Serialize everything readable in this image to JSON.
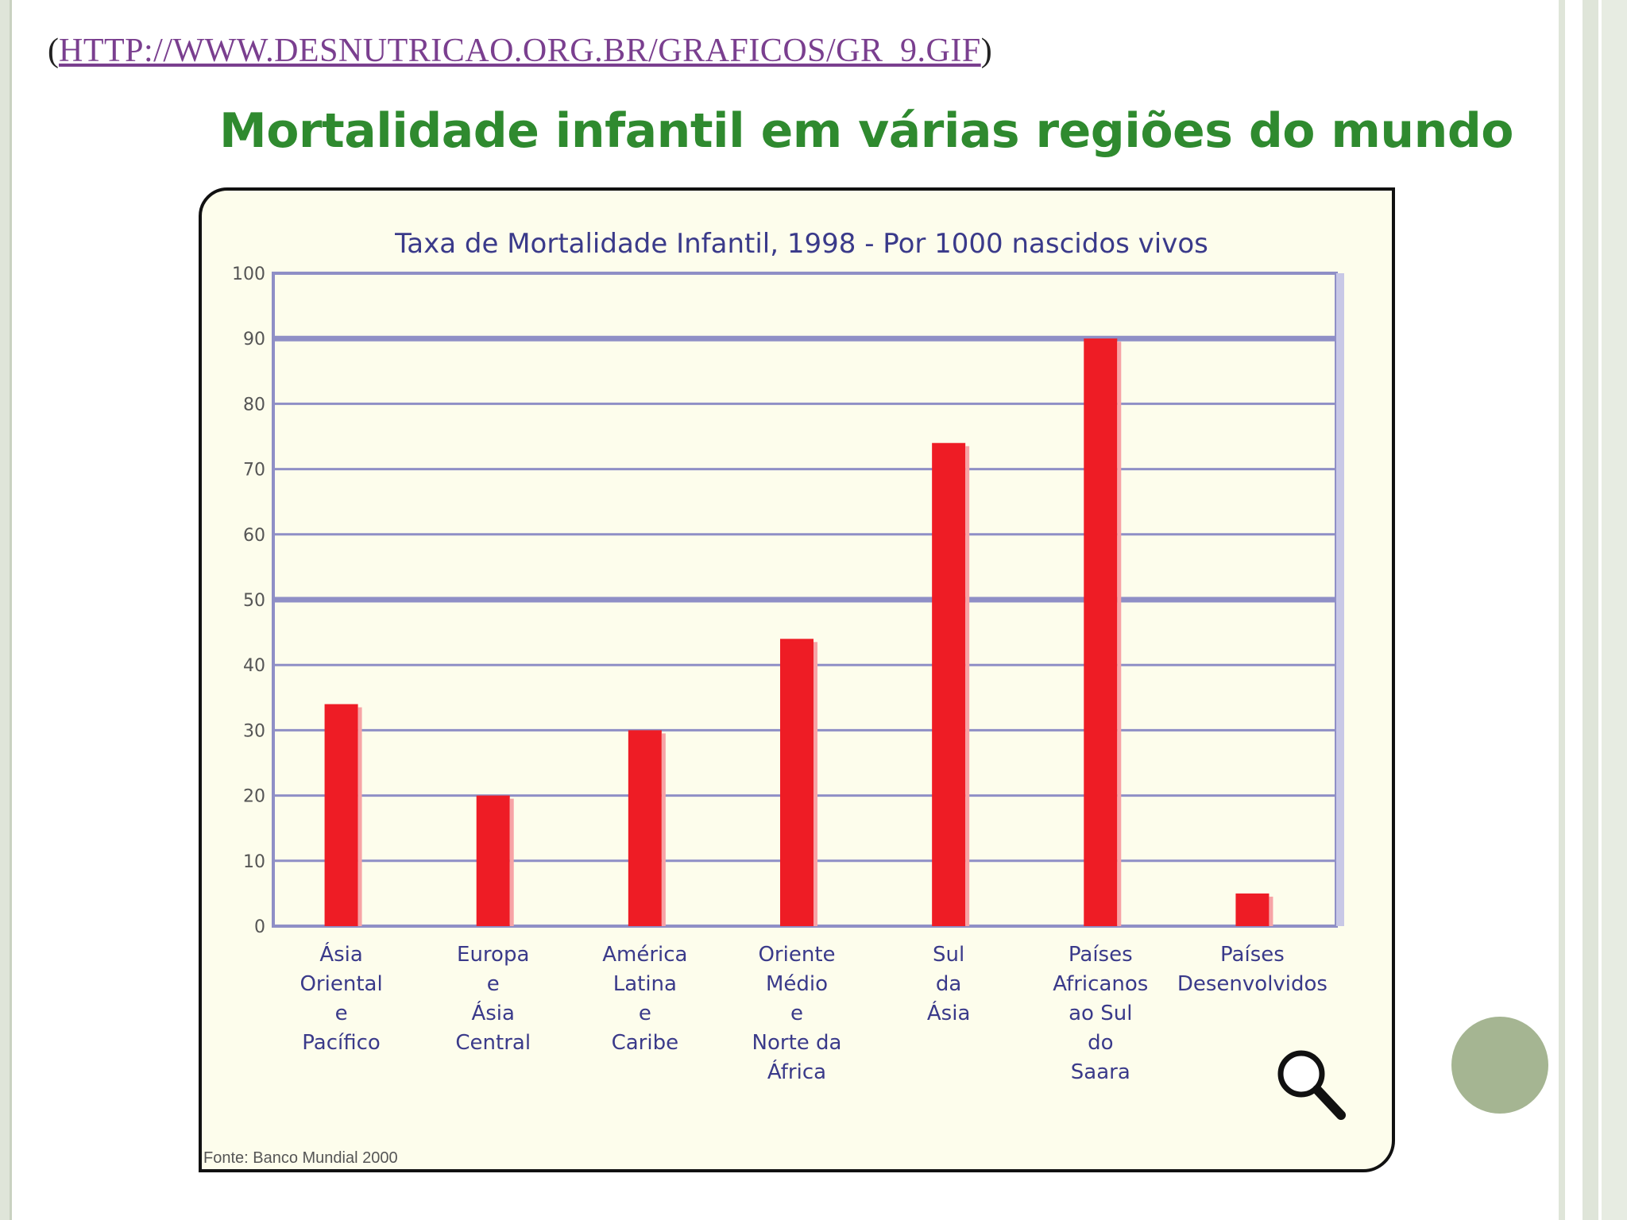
{
  "source_link": {
    "open_paren": "(",
    "url_text": "HTTP://WWW.DESNUTRICAO.ORG.BR/GRAFICOS/GR_9.GIF",
    "close_paren": ")"
  },
  "heading": "Mortalidade infantil em várias regiões do mundo",
  "footnote": "Fonte: Banco Mundial 2000",
  "icons": {
    "zoom": "magnifier-icon"
  },
  "colors": {
    "bar": "#ee1c25",
    "grid": "#8f8fc6",
    "heading": "#2f8a2f",
    "panel": "#fdfdec"
  },
  "chart_data": {
    "type": "bar",
    "title": "Taxa de Mortalidade Infantil, 1998  -  Por 1000 nascidos vivos",
    "categories": [
      [
        "Ásia",
        "Oriental",
        "e",
        "Pacífico"
      ],
      [
        "Europa",
        "e",
        "Ásia",
        "Central"
      ],
      [
        "América",
        "Latina",
        "e",
        "Caribe"
      ],
      [
        "Oriente",
        "Médio",
        "e",
        "Norte da",
        "África"
      ],
      [
        "Sul",
        "da",
        "Ásia"
      ],
      [
        "Países",
        "Africanos",
        "ao Sul",
        "do",
        "Saara"
      ],
      [
        "Países",
        "Desenvolvidos"
      ]
    ],
    "values": [
      34,
      20,
      30,
      44,
      74,
      90,
      5
    ],
    "ylim": [
      0,
      100
    ],
    "yticks": [
      0,
      10,
      20,
      30,
      40,
      50,
      60,
      70,
      80,
      90,
      100
    ],
    "grid": true,
    "legend": "none"
  }
}
